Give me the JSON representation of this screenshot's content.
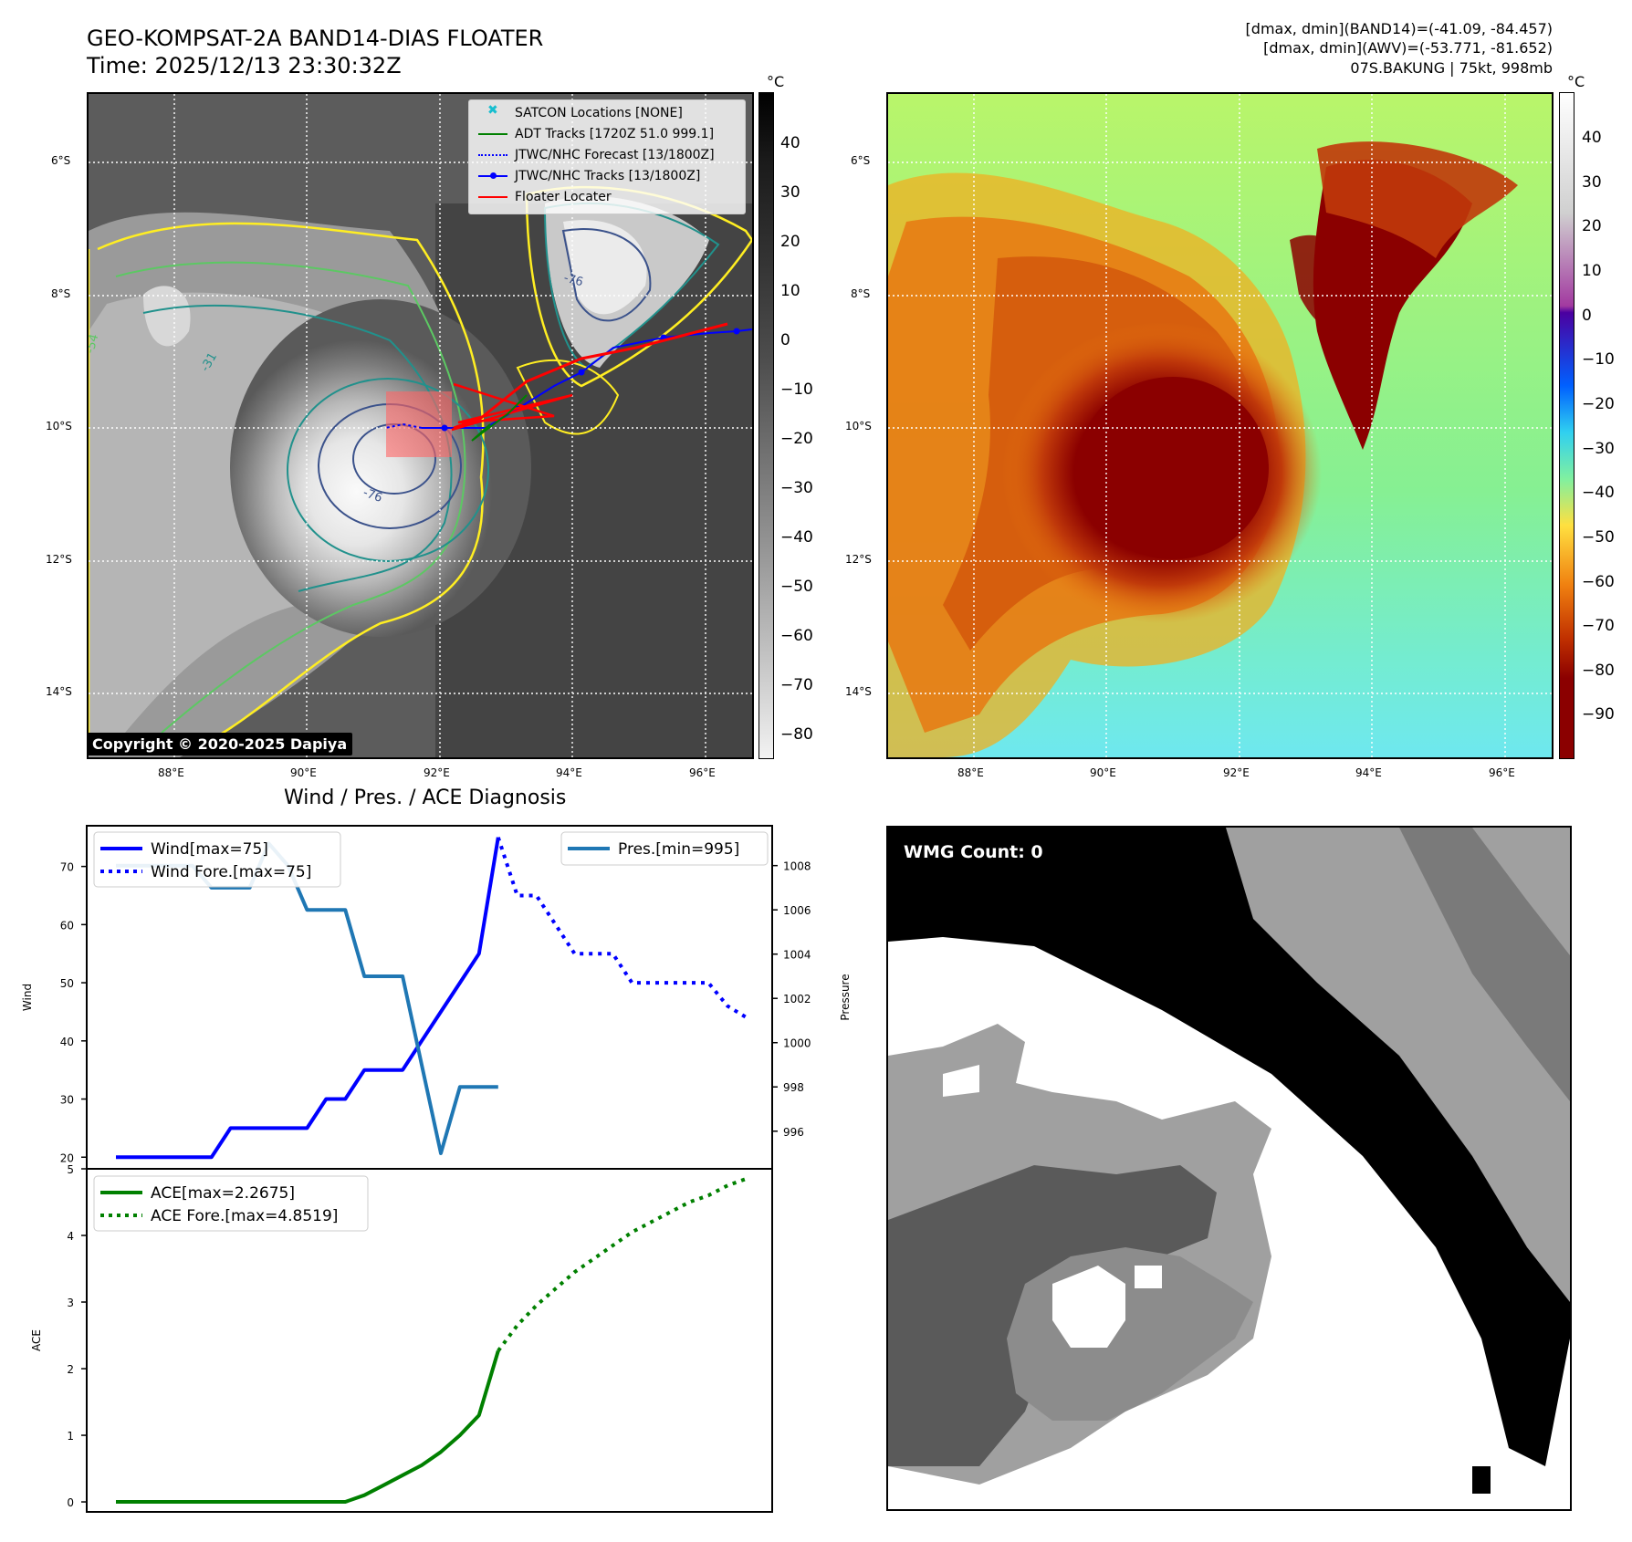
{
  "header": {
    "title_line1": "GEO-KOMPSAT-2A BAND14-DIAS FLOATER",
    "title_line2": "Time: 2025/12/13 23:30:32Z",
    "info_line1": "[dmax, dmin](BAND14)=(-41.09, -84.457)",
    "info_line2": "[dmax, dmin](AWV)=(-53.771, -81.652)",
    "info_line3": "07S.BAKUNG | 75kt, 998mb"
  },
  "map": {
    "lat_labels": [
      "6°S",
      "8°S",
      "10°S",
      "12°S",
      "14°S"
    ],
    "lon_labels": [
      "88°E",
      "90°E",
      "92°E",
      "94°E",
      "96°E"
    ],
    "copyright": "Copyright © 2020-2025 Dapiya",
    "contour_labels": [
      "-76",
      "-76",
      "-54",
      "-31"
    ],
    "legend": [
      {
        "label": "SATCON Locations [NONE]",
        "color": "#17becf",
        "style": "x"
      },
      {
        "label": "ADT Tracks [1720Z 51.0 999.1]",
        "color": "#008000",
        "style": "solid"
      },
      {
        "label": "JTWC/NHC Forecast [13/1800Z]",
        "color": "#0000ff",
        "style": "dotted"
      },
      {
        "label": "JTWC/NHC Tracks [13/1800Z]",
        "color": "#0000ff",
        "style": "dot-marker"
      },
      {
        "label": "Floater Locater",
        "color": "#ff0000",
        "style": "solid"
      }
    ]
  },
  "colorbar_gray": {
    "unit": "°C",
    "ticks": [
      "40",
      "30",
      "20",
      "10",
      "0",
      "−10",
      "−20",
      "−30",
      "−40",
      "−50",
      "−60",
      "−70",
      "−80"
    ]
  },
  "colorbar_color": {
    "unit": "°C",
    "ticks": [
      "40",
      "30",
      "20",
      "10",
      "0",
      "−10",
      "−20",
      "−30",
      "−40",
      "−50",
      "−60",
      "−70",
      "−80",
      "−90"
    ]
  },
  "wmg": {
    "label": "WMG Count: 0"
  },
  "colors": {
    "wind": "#0000ff",
    "pressure": "#1f77b4",
    "ace": "#008000",
    "floater": "#ff0000",
    "contour_yellow": "#ffee22",
    "contour_green": "#5cc863",
    "contour_teal": "#21918c",
    "contour_navy": "#3b528b"
  },
  "chart_data": [
    {
      "type": "line",
      "title": "Wind / Pres. / ACE Diagnosis",
      "ylabel": "Wind",
      "ylabel_right": "Pressure",
      "ylim": [
        18,
        77
      ],
      "ylim_right": [
        994.3,
        1009.8
      ],
      "yticks": [
        "20",
        "30",
        "40",
        "50",
        "60",
        "70"
      ],
      "yticks_right": [
        "996",
        "998",
        "1000",
        "1002",
        "1004",
        "1006",
        "1008"
      ],
      "xlim": [
        0,
        33
      ],
      "series": [
        {
          "name": "Wind[max=75]",
          "style": "solid",
          "x": [
            0,
            1,
            2,
            3,
            4,
            5,
            6,
            7,
            8,
            9,
            10,
            11,
            12,
            13,
            14,
            15,
            16,
            17,
            18,
            19,
            20
          ],
          "values": [
            20,
            20,
            20,
            20,
            20,
            20,
            25,
            25,
            25,
            25,
            25,
            30,
            30,
            35,
            35,
            35,
            40,
            45,
            50,
            55,
            75
          ]
        },
        {
          "name": "Wind Fore.[max=75]",
          "style": "dotted",
          "x": [
            20,
            21,
            22,
            23,
            24,
            25,
            26,
            27,
            28,
            29,
            30,
            31,
            32,
            33
          ],
          "values": [
            75,
            65,
            65,
            60,
            55,
            55,
            55,
            50,
            50,
            50,
            50,
            50,
            46,
            44
          ]
        },
        {
          "name": "Pres.[min=995]",
          "axis": "right",
          "style": "solid",
          "x": [
            0,
            1,
            2,
            3,
            4,
            5,
            6,
            7,
            8,
            9,
            10,
            11,
            12,
            13,
            14,
            15,
            16,
            17,
            18,
            19,
            20
          ],
          "values": [
            1008,
            1008,
            1008,
            1008,
            1008,
            1007,
            1007,
            1007,
            1009,
            1008,
            1006,
            1006,
            1006,
            1003,
            1003,
            1003,
            999,
            995,
            998,
            998,
            998
          ]
        }
      ],
      "legend_left": [
        "Wind[max=75]",
        "Wind Fore.[max=75]"
      ],
      "legend_right": [
        "Pres.[min=995]"
      ]
    },
    {
      "type": "line",
      "ylabel": "ACE",
      "ylim": [
        -0.15,
        5.0
      ],
      "yticks": [
        "0",
        "1",
        "2",
        "3",
        "4",
        "5"
      ],
      "xlim": [
        0,
        33
      ],
      "series": [
        {
          "name": "ACE[max=2.2675]",
          "style": "solid",
          "x": [
            0,
            2,
            4,
            6,
            8,
            10,
            12,
            13,
            14,
            15,
            16,
            17,
            18,
            19,
            20
          ],
          "values": [
            0,
            0,
            0,
            0,
            0,
            0,
            0,
            0.1,
            0.25,
            0.4,
            0.55,
            0.75,
            1.0,
            1.3,
            2.2675
          ]
        },
        {
          "name": "ACE Fore.[max=4.8519]",
          "style": "dotted",
          "x": [
            20,
            21,
            22,
            23,
            24,
            25,
            26,
            27,
            28,
            29,
            30,
            31,
            32,
            33
          ],
          "values": [
            2.2675,
            2.65,
            2.95,
            3.2,
            3.45,
            3.65,
            3.85,
            4.05,
            4.2,
            4.35,
            4.5,
            4.6,
            4.75,
            4.8519
          ]
        }
      ],
      "legend": [
        "ACE[max=2.2675]",
        "ACE Fore.[max=4.8519]"
      ]
    }
  ]
}
